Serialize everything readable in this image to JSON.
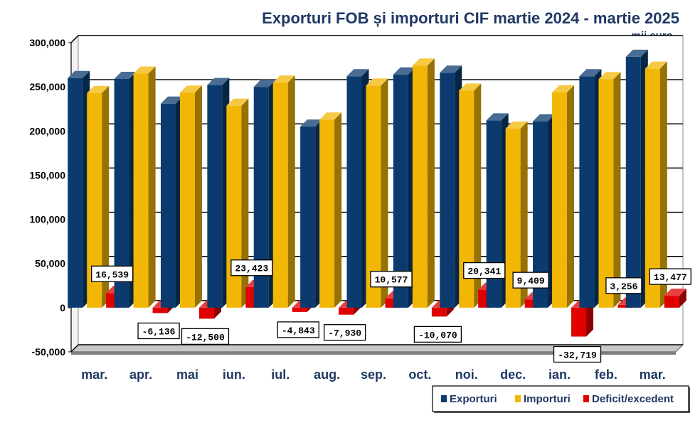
{
  "chart_data": {
    "type": "bar",
    "title": "Exporturi FOB și importuri CIF martie 2024 - martie 2025",
    "subtitle": "- mii euro -",
    "categories": [
      "mar.",
      "apr.",
      "mai",
      "iun.",
      "iul.",
      "aug.",
      "sep.",
      "oct.",
      "noi.",
      "dec.",
      "ian.",
      "feb.",
      "mar."
    ],
    "series": [
      {
        "name": "Exporturi",
        "color": "#0b3b6e",
        "values": [
          260000,
          259000,
          231000,
          252000,
          250000,
          205000,
          262000,
          264000,
          266000,
          212000,
          211000,
          262000,
          284000
        ]
      },
      {
        "name": "Importuri",
        "color": "#f2b705",
        "values": [
          243000,
          265000,
          243500,
          228600,
          254800,
          212900,
          251400,
          274100,
          245700,
          202600,
          243700,
          258700,
          270500
        ]
      },
      {
        "name": "Deficit/excedent",
        "color": "#e00000",
        "values": [
          16539,
          -6136,
          -12500,
          23423,
          -4843,
          -7930,
          10577,
          -10070,
          20341,
          9409,
          -32719,
          3256,
          13477
        ]
      }
    ],
    "data_labels": [
      "16,539",
      "-6,136",
      "-12,500",
      "23,423",
      "-4,843",
      "-7,930",
      "10,577",
      "-10,070",
      "20,341",
      "9,409",
      "-32,719",
      "3,256",
      "13,477"
    ],
    "yticks": [
      "-50,000",
      "0",
      "50,000",
      "100,000",
      "150,000",
      "200,000",
      "250,000",
      "300,000"
    ],
    "ylim": [
      -50000,
      300000
    ],
    "grid": true,
    "legend_position": "bottom-right"
  }
}
